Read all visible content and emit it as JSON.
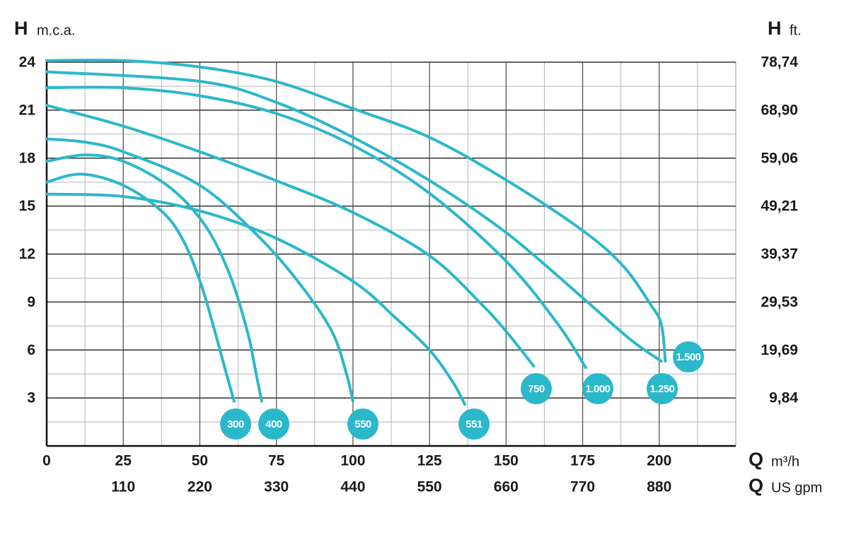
{
  "chart_data": {
    "type": "line",
    "y_label": {
      "symbol": "H",
      "unit": "m.c.a."
    },
    "y2_label": {
      "symbol": "H",
      "unit": "ft."
    },
    "x_label": {
      "symbol": "Q",
      "unit": "m³/h"
    },
    "x2_label": {
      "symbol": "Q",
      "unit": "US gpm"
    },
    "xlim": [
      0,
      225
    ],
    "xticks": [
      0,
      25,
      50,
      75,
      100,
      125,
      150,
      175,
      200
    ],
    "x2lim": [
      0,
      990
    ],
    "x2ticks": [
      110,
      220,
      330,
      440,
      550,
      660,
      770,
      880
    ],
    "ylim": [
      0,
      24
    ],
    "yticks": [
      3,
      6,
      9,
      12,
      15,
      18,
      21,
      24
    ],
    "y2lim": [
      0,
      78.74
    ],
    "y2ticks": [
      {
        "value": 9.84,
        "label": "9,84"
      },
      {
        "value": 19.69,
        "label": "19,69"
      },
      {
        "value": 29.53,
        "label": "29,53"
      },
      {
        "value": 39.37,
        "label": "39,37"
      },
      {
        "value": 49.21,
        "label": "49,21"
      },
      {
        "value": 59.06,
        "label": "59,06"
      },
      {
        "value": 68.9,
        "label": "68,90"
      },
      {
        "value": 78.74,
        "label": "78,74"
      }
    ],
    "grid": true,
    "minor_grid": true,
    "color": "#2bb8cb",
    "series": [
      {
        "name": "300",
        "x": [
          0,
          11.3,
          25,
          38,
          45,
          50.6,
          55,
          58.7,
          61.2
        ],
        "y": [
          16.5,
          17.0,
          16.3,
          14.6,
          12.7,
          10.0,
          7.1,
          4.5,
          2.8
        ]
      },
      {
        "name": "400",
        "x": [
          0,
          12.5,
          25,
          40,
          51.7,
          59.8,
          65.6,
          68.4,
          70.2
        ],
        "y": [
          17.8,
          18.2,
          17.8,
          16.2,
          13.8,
          10.7,
          7.1,
          4.5,
          2.8
        ]
      },
      {
        "name": "550",
        "x": [
          0,
          12.5,
          25,
          50,
          70.2,
          84,
          93.3,
          97.9,
          100
        ],
        "y": [
          19.2,
          19.0,
          18.4,
          16.3,
          12.9,
          9.8,
          7.1,
          4.5,
          2.8
        ]
      },
      {
        "name": "551",
        "x": [
          0,
          25,
          50,
          74.8,
          100,
          114,
          125,
          132.6,
          136.5
        ],
        "y": [
          15.75,
          15.6,
          14.7,
          13.0,
          10.3,
          8.0,
          6.0,
          4.0,
          2.6
        ]
      },
      {
        "name": "750",
        "x": [
          0,
          25,
          50,
          74.8,
          100,
          125,
          141.8,
          150.3,
          159
        ],
        "y": [
          21.3,
          20.0,
          18.4,
          16.6,
          14.6,
          11.9,
          8.9,
          7.1,
          5.0
        ]
      },
      {
        "name": "1.000",
        "x": [
          0,
          25,
          50,
          74.8,
          100,
          125,
          150.3,
          167,
          176
        ],
        "y": [
          22.4,
          22.4,
          21.9,
          20.8,
          18.8,
          15.8,
          11.5,
          7.6,
          4.9
        ]
      },
      {
        "name": "1.250",
        "x": [
          0,
          50,
          74.8,
          100,
          125,
          150.3,
          174.8,
          190.3,
          200.7
        ],
        "y": [
          23.4,
          22.8,
          21.5,
          19.3,
          16.6,
          13.3,
          9.3,
          6.7,
          5.3
        ]
      },
      {
        "name": "1.500",
        "x": [
          0,
          25,
          50,
          74.8,
          100,
          125,
          150.3,
          174.8,
          188,
          197,
          200.7,
          202
        ],
        "y": [
          24.1,
          24.1,
          23.7,
          22.8,
          21.1,
          19.3,
          16.6,
          13.5,
          11.3,
          8.9,
          7.6,
          5.3
        ]
      }
    ]
  }
}
